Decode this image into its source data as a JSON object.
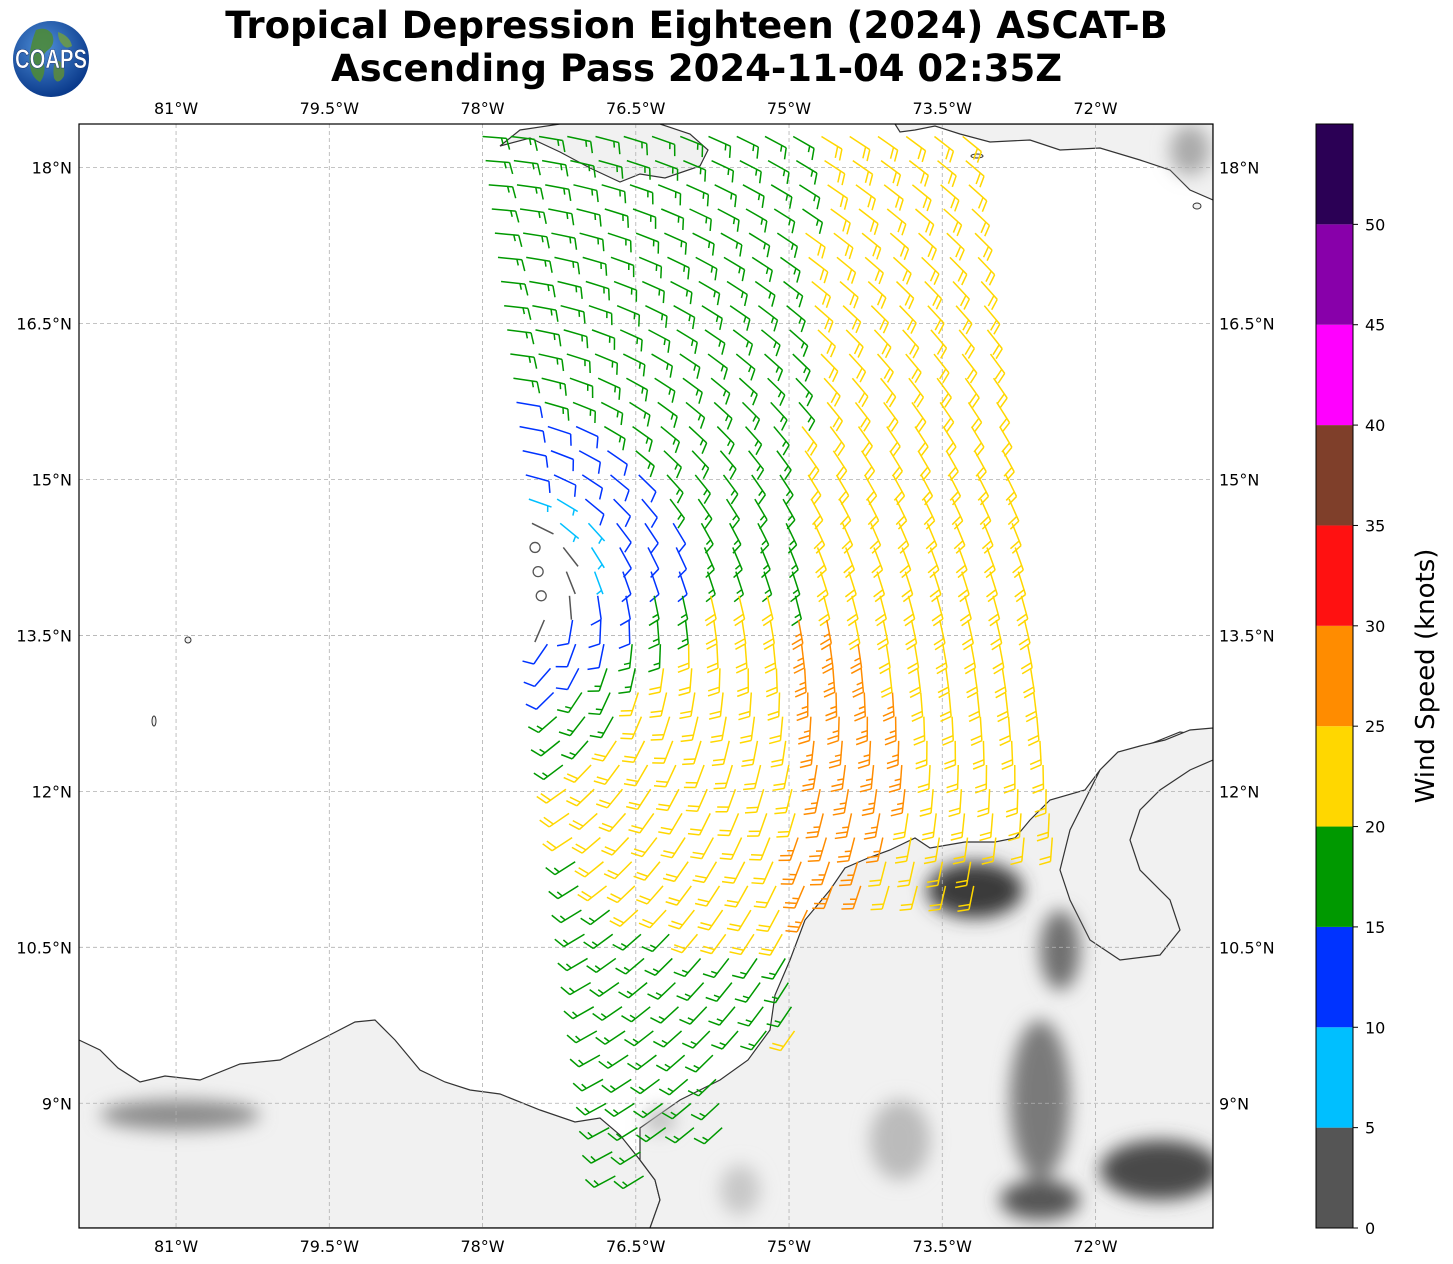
{
  "title": {
    "line1": "Tropical Depression Eighteen (2024) ASCAT-B",
    "line2": "Ascending Pass 2024-11-04 02:35Z"
  },
  "logo": {
    "text": "COAPS"
  },
  "map": {
    "lon_range": [
      -81.95,
      -70.85
    ],
    "lat_range": [
      7.8,
      18.42
    ],
    "lon_ticks": [
      {
        "value": -81.0,
        "label": "81°W"
      },
      {
        "value": -79.5,
        "label": "79.5°W"
      },
      {
        "value": -78.0,
        "label": "78°W"
      },
      {
        "value": -76.5,
        "label": "76.5°W"
      },
      {
        "value": -75.0,
        "label": "75°W"
      },
      {
        "value": -73.5,
        "label": "73.5°W"
      },
      {
        "value": -72.0,
        "label": "72°W"
      }
    ],
    "lat_ticks": [
      {
        "value": 18.0,
        "label": "18°N"
      },
      {
        "value": 16.5,
        "label": "16.5°N"
      },
      {
        "value": 15.0,
        "label": "15°N"
      },
      {
        "value": 13.5,
        "label": "13.5°N"
      },
      {
        "value": 12.0,
        "label": "12°N"
      },
      {
        "value": 10.5,
        "label": "10.5°N"
      },
      {
        "value": 9.0,
        "label": "9°N"
      }
    ],
    "grid": true,
    "low_center": {
      "lat": 14.05,
      "lon": -77.8
    },
    "swath": {
      "west_edge_top_lon": -78.0,
      "west_edge_bottom_lon": -76.7,
      "width_deg": 4.7
    },
    "colors": {
      "land": "#f2f2f2",
      "terrain_dark": "#2f2f2f",
      "coast": "#333333",
      "grid": "#b0b0b0"
    }
  },
  "colorbar": {
    "label": "Wind Speed (knots)",
    "ticks": [
      "0",
      "5",
      "10",
      "15",
      "20",
      "25",
      "30",
      "35",
      "40",
      "45",
      "50"
    ],
    "bins": [
      {
        "min": 0,
        "max": 5,
        "color": "#555555"
      },
      {
        "min": 5,
        "max": 10,
        "color": "#00bfff"
      },
      {
        "min": 10,
        "max": 15,
        "color": "#0033ff"
      },
      {
        "min": 15,
        "max": 20,
        "color": "#009900"
      },
      {
        "min": 20,
        "max": 25,
        "color": "#ffd700"
      },
      {
        "min": 25,
        "max": 30,
        "color": "#ff8c00"
      },
      {
        "min": 30,
        "max": 35,
        "color": "#ff1111"
      },
      {
        "min": 35,
        "max": 40,
        "color": "#7f3f2a"
      },
      {
        "min": 40,
        "max": 45,
        "color": "#ff00ff"
      },
      {
        "min": 45,
        "max": 50,
        "color": "#8800aa"
      },
      {
        "min": 50,
        "max": 55,
        "color": "#2b0055"
      }
    ]
  }
}
